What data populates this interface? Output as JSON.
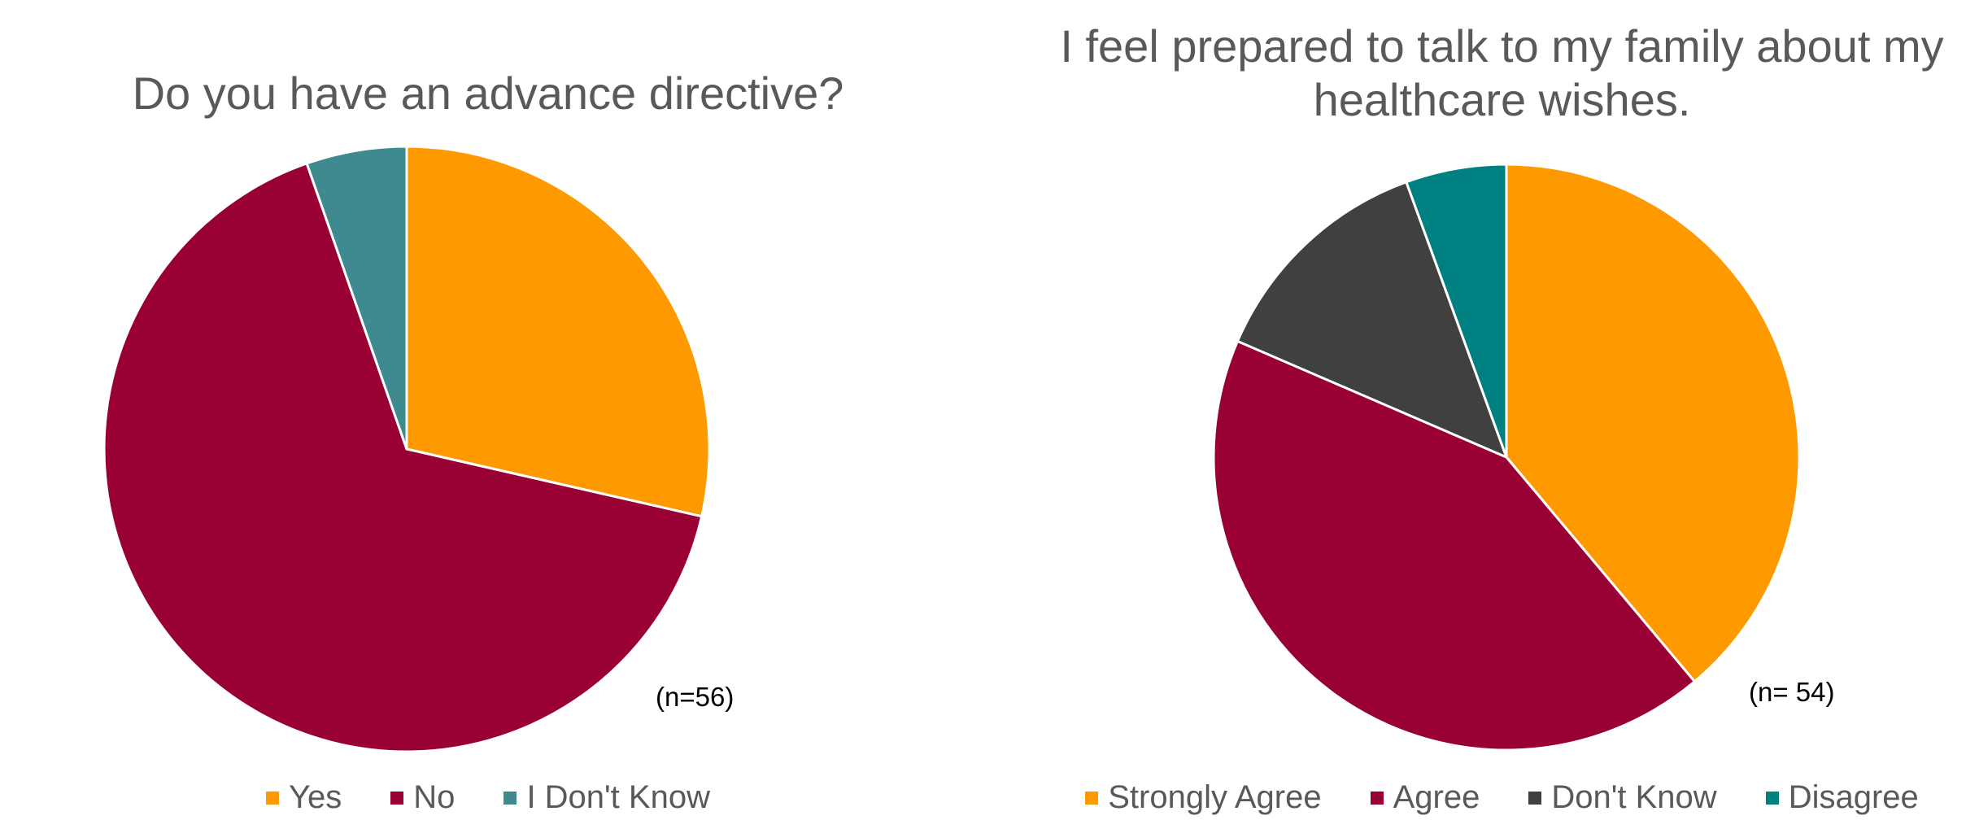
{
  "chart_data": [
    {
      "type": "pie",
      "title": "Do you have an advance directive?",
      "annotation": "(n=56)",
      "categories": [
        "Yes",
        "No",
        "I Don't Know"
      ],
      "values": [
        16,
        37,
        3
      ],
      "colors": [
        "#FF9900",
        "#990033",
        "#3F8A8F"
      ],
      "legend_position": "bottom"
    },
    {
      "type": "pie",
      "title": "I feel prepared to talk to my family about my healthcare wishes.",
      "annotation": "(n= 54)",
      "categories": [
        "Strongly Agree",
        "Agree",
        "Don't Know",
        "Disagree"
      ],
      "values": [
        21,
        23,
        7,
        3
      ],
      "colors": [
        "#FF9900",
        "#990033",
        "#404040",
        "#008080"
      ],
      "legend_position": "bottom"
    }
  ]
}
